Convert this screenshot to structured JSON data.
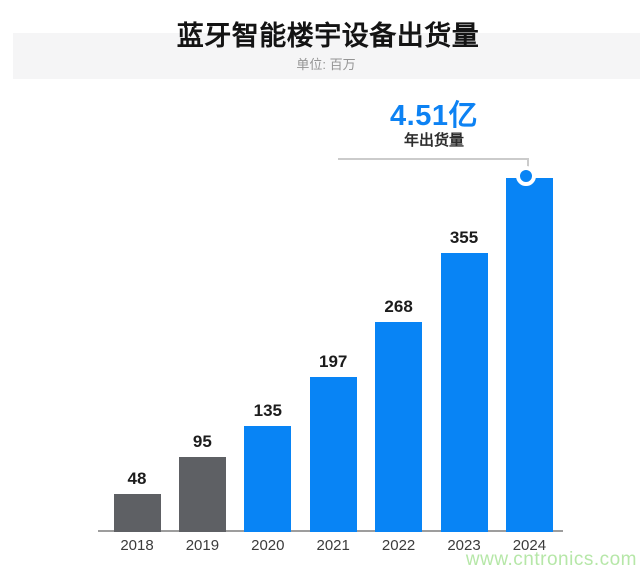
{
  "chart_data": {
    "type": "bar",
    "title": "蓝牙智能楼宇设备出货量",
    "subtitle": "单位: 百万",
    "categories": [
      "2018",
      "2019",
      "2020",
      "2021",
      "2022",
      "2023",
      "2024"
    ],
    "values": [
      48,
      95,
      135,
      197,
      268,
      355,
      451
    ],
    "value_labels": [
      "48",
      "95",
      "135",
      "197",
      "268",
      "355",
      ""
    ],
    "highlight": {
      "year": "2024",
      "label": "4.51亿",
      "sublabel": "年出货量"
    },
    "xlabel": "",
    "ylabel": "",
    "ylim": [
      0,
      470
    ],
    "grid": false,
    "legend": false,
    "colors": {
      "bar_gray": "#5e6064",
      "bar_blue": "#0884f5",
      "accent_text": "#0d82f3",
      "watermark_green": "#b6e7a8"
    }
  },
  "watermark": "www.cntronics.com"
}
